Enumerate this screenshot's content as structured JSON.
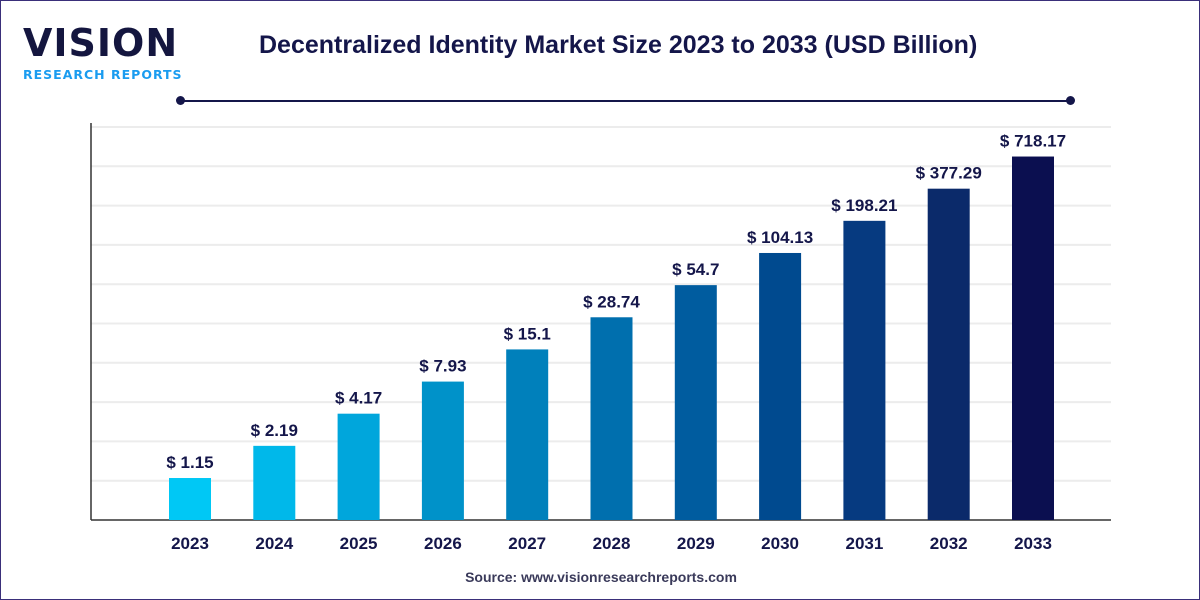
{
  "logo": {
    "main": "VISION",
    "sub": "RESEARCH REPORTS"
  },
  "source": "Source: www.visionresearchreports.com",
  "chart_data": {
    "type": "bar",
    "title": "Decentralized Identity Market Size 2023 to 2033 (USD Billion)",
    "xlabel": "",
    "ylabel": "",
    "yscale": "log",
    "grid": true,
    "categories": [
      "2023",
      "2024",
      "2025",
      "2026",
      "2027",
      "2028",
      "2029",
      "2030",
      "2031",
      "2032",
      "2033"
    ],
    "values": [
      1.15,
      2.19,
      4.17,
      7.93,
      15.1,
      28.74,
      54.7,
      104.13,
      198.21,
      377.29,
      718.17
    ],
    "labels": [
      "$ 1.15",
      "$ 2.19",
      "$ 4.17",
      "$ 7.93",
      "$ 15.1",
      "$ 28.74",
      "$ 54.7",
      "$ 104.13",
      "$ 198.21",
      "$ 377.29",
      "$ 718.17"
    ],
    "colors": [
      "#00c8f5",
      "#00b8ea",
      "#00a6dc",
      "#0092c9",
      "#0080bb",
      "#006fae",
      "#005c9f",
      "#004a8f",
      "#063a80",
      "#0b2a6a",
      "#0b0f50"
    ]
  }
}
